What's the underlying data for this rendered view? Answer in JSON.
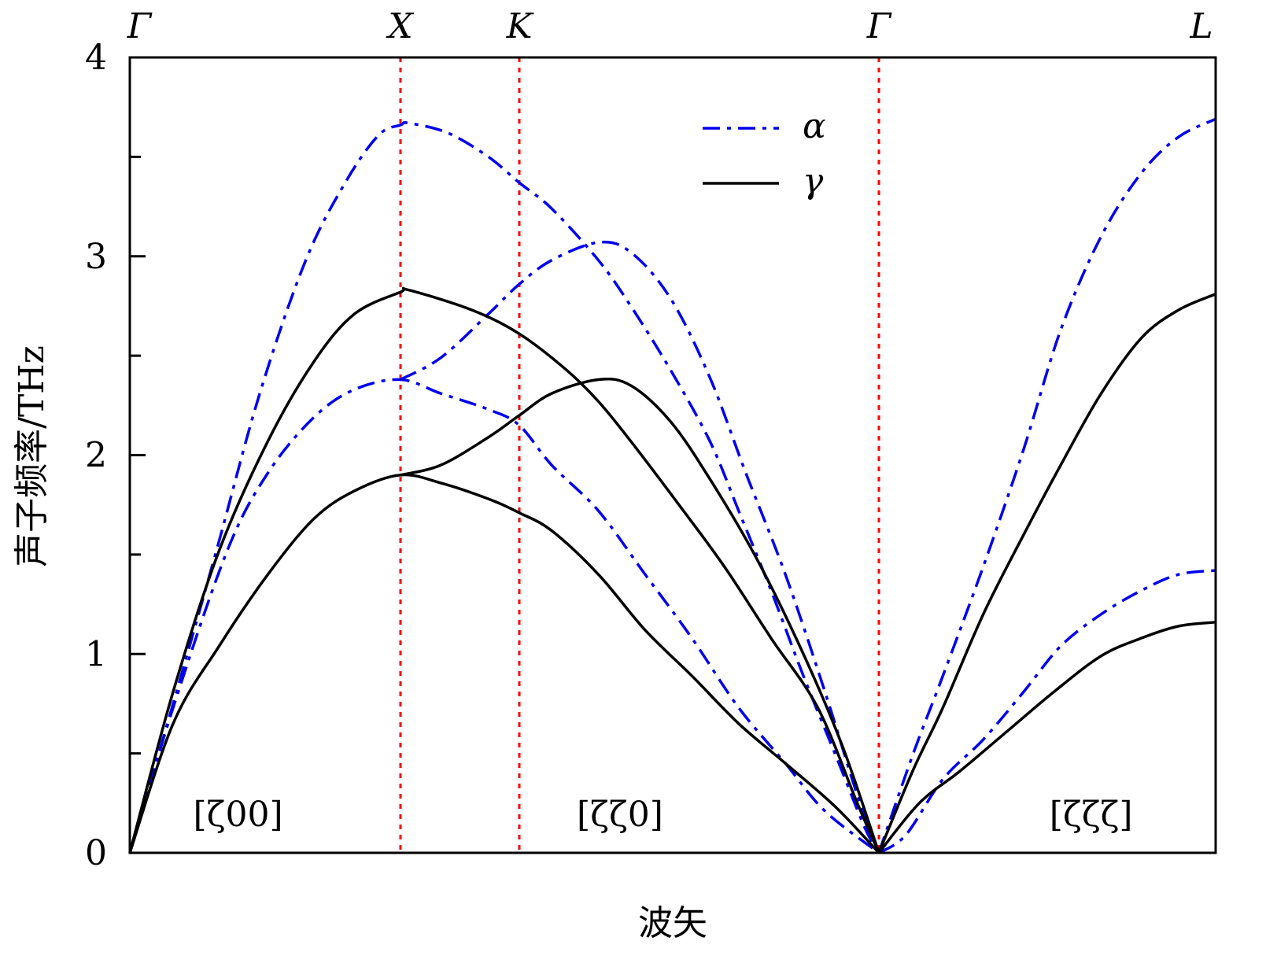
{
  "chart_data": {
    "type": "line",
    "xlabel": "波矢",
    "ylabel": "声子频率/THz",
    "ylim": [
      0,
      4
    ],
    "yticks": [
      "0",
      "1",
      "2",
      "3",
      "4"
    ],
    "y_minor_step": 0.5,
    "grid": false,
    "legend_position": "top-center-right",
    "kpath_ticks": [
      {
        "label": "Γ",
        "pos": 0
      },
      {
        "label": "X",
        "pos": 1
      },
      {
        "label": "K",
        "pos": 2
      },
      {
        "label": "Γ",
        "pos": 3
      },
      {
        "label": "L",
        "pos": 4
      }
    ],
    "kpath_note": "pos = segment index + fraction along segment",
    "dotted_markers": [
      1,
      2,
      3
    ],
    "marker_color": "#ff0000",
    "region_labels": [
      {
        "text": "[ζ00]",
        "pos": 0.4
      },
      {
        "text": "[ζζ0]",
        "pos": 2.28
      },
      {
        "text": "[ζζζ]",
        "pos": 3.63
      }
    ],
    "series": [
      {
        "name": "α",
        "color": "#0000ee",
        "style": "dash-dot",
        "branches": [
          [
            [
              0,
              0
            ],
            [
              0.16,
              0.75
            ],
            [
              0.32,
              1.52
            ],
            [
              0.48,
              2.31
            ],
            [
              0.65,
              2.98
            ],
            [
              0.8,
              3.38
            ],
            [
              0.92,
              3.61
            ],
            [
              1,
              3.66
            ],
            [
              1.07,
              3.67
            ],
            [
              1.4,
              3.62
            ],
            [
              1.74,
              3.5
            ],
            [
              2,
              3.37
            ],
            [
              2.09,
              3.24
            ],
            [
              2.22,
              2.98
            ],
            [
              2.31,
              2.75
            ],
            [
              2.42,
              2.43
            ],
            [
              2.53,
              2.07
            ],
            [
              2.61,
              1.72
            ],
            [
              2.7,
              1.32
            ],
            [
              2.79,
              0.89
            ],
            [
              2.88,
              0.49
            ],
            [
              2.96,
              0.13
            ],
            [
              3,
              0
            ]
          ],
          [
            [
              1,
              2.38
            ],
            [
              1.34,
              2.49
            ],
            [
              1.74,
              2.71
            ],
            [
              2,
              2.86
            ],
            [
              2.09,
              2.98
            ],
            [
              2.22,
              3.07
            ],
            [
              2.31,
              3.02
            ],
            [
              2.42,
              2.79
            ],
            [
              2.53,
              2.39
            ],
            [
              2.63,
              1.91
            ],
            [
              2.74,
              1.4
            ],
            [
              2.85,
              0.81
            ],
            [
              2.94,
              0.29
            ],
            [
              3,
              0
            ]
          ],
          [
            [
              0,
              0
            ],
            [
              0.16,
              0.73
            ],
            [
              0.36,
              1.52
            ],
            [
              0.51,
              1.91
            ],
            [
              0.68,
              2.19
            ],
            [
              0.83,
              2.33
            ],
            [
              1,
              2.38
            ],
            [
              1.34,
              2.31
            ],
            [
              1.74,
              2.23
            ],
            [
              2,
              2.15
            ],
            [
              2.09,
              1.95
            ],
            [
              2.22,
              1.72
            ],
            [
              2.35,
              1.4
            ],
            [
              2.48,
              1.08
            ],
            [
              2.61,
              0.73
            ],
            [
              2.74,
              0.45
            ],
            [
              2.85,
              0.21
            ],
            [
              3,
              0
            ]
          ],
          [
            [
              3,
              0
            ],
            [
              3.1,
              0.49
            ],
            [
              3.19,
              0.89
            ],
            [
              3.31,
              1.44
            ],
            [
              3.43,
              2.03
            ],
            [
              3.54,
              2.63
            ],
            [
              3.66,
              3.1
            ],
            [
              3.78,
              3.42
            ],
            [
              3.89,
              3.6
            ],
            [
              4,
              3.69
            ]
          ],
          [
            [
              3,
              0
            ],
            [
              3.08,
              0.09
            ],
            [
              3.19,
              0.37
            ],
            [
              3.31,
              0.57
            ],
            [
              3.43,
              0.81
            ],
            [
              3.54,
              1.04
            ],
            [
              3.66,
              1.2
            ],
            [
              3.78,
              1.32
            ],
            [
              3.89,
              1.4
            ],
            [
              4,
              1.42
            ]
          ]
        ]
      },
      {
        "name": "γ",
        "color": "#000000",
        "style": "solid",
        "branches": [
          [
            [
              0,
              0
            ],
            [
              0.16,
              0.81
            ],
            [
              0.33,
              1.52
            ],
            [
              0.51,
              2.07
            ],
            [
              0.68,
              2.47
            ],
            [
              0.83,
              2.71
            ],
            [
              1,
              2.82
            ],
            [
              1.07,
              2.83
            ],
            [
              1.6,
              2.73
            ],
            [
              2,
              2.61
            ],
            [
              2.13,
              2.43
            ],
            [
              2.22,
              2.27
            ],
            [
              2.31,
              2.07
            ],
            [
              2.44,
              1.76
            ],
            [
              2.57,
              1.44
            ],
            [
              2.7,
              1.08
            ],
            [
              2.83,
              0.73
            ],
            [
              2.94,
              0.25
            ],
            [
              3,
              0
            ]
          ],
          [
            [
              1,
              1.9
            ],
            [
              1.34,
              1.95
            ],
            [
              1.74,
              2.09
            ],
            [
              2,
              2.2
            ],
            [
              2.09,
              2.31
            ],
            [
              2.22,
              2.38
            ],
            [
              2.31,
              2.35
            ],
            [
              2.42,
              2.17
            ],
            [
              2.53,
              1.88
            ],
            [
              2.66,
              1.48
            ],
            [
              2.79,
              1.0
            ],
            [
              2.9,
              0.53
            ],
            [
              3,
              0
            ]
          ],
          [
            [
              0,
              0
            ],
            [
              0.16,
              0.65
            ],
            [
              0.33,
              1.04
            ],
            [
              0.51,
              1.4
            ],
            [
              0.68,
              1.68
            ],
            [
              0.83,
              1.82
            ],
            [
              1,
              1.9
            ],
            [
              1.34,
              1.86
            ],
            [
              1.74,
              1.78
            ],
            [
              2,
              1.71
            ],
            [
              2.09,
              1.62
            ],
            [
              2.22,
              1.4
            ],
            [
              2.35,
              1.12
            ],
            [
              2.48,
              0.89
            ],
            [
              2.61,
              0.65
            ],
            [
              2.74,
              0.45
            ],
            [
              2.88,
              0.23
            ],
            [
              3,
              0
            ]
          ],
          [
            [
              3,
              0
            ],
            [
              3.1,
              0.41
            ],
            [
              3.19,
              0.73
            ],
            [
              3.31,
              1.2
            ],
            [
              3.43,
              1.6
            ],
            [
              3.54,
              1.95
            ],
            [
              3.66,
              2.31
            ],
            [
              3.78,
              2.59
            ],
            [
              3.89,
              2.73
            ],
            [
              4,
              2.81
            ]
          ],
          [
            [
              3,
              0
            ],
            [
              3.12,
              0.25
            ],
            [
              3.24,
              0.41
            ],
            [
              3.38,
              0.61
            ],
            [
              3.52,
              0.81
            ],
            [
              3.66,
              0.99
            ],
            [
              3.78,
              1.08
            ],
            [
              3.89,
              1.14
            ],
            [
              4,
              1.16
            ]
          ]
        ]
      }
    ]
  }
}
